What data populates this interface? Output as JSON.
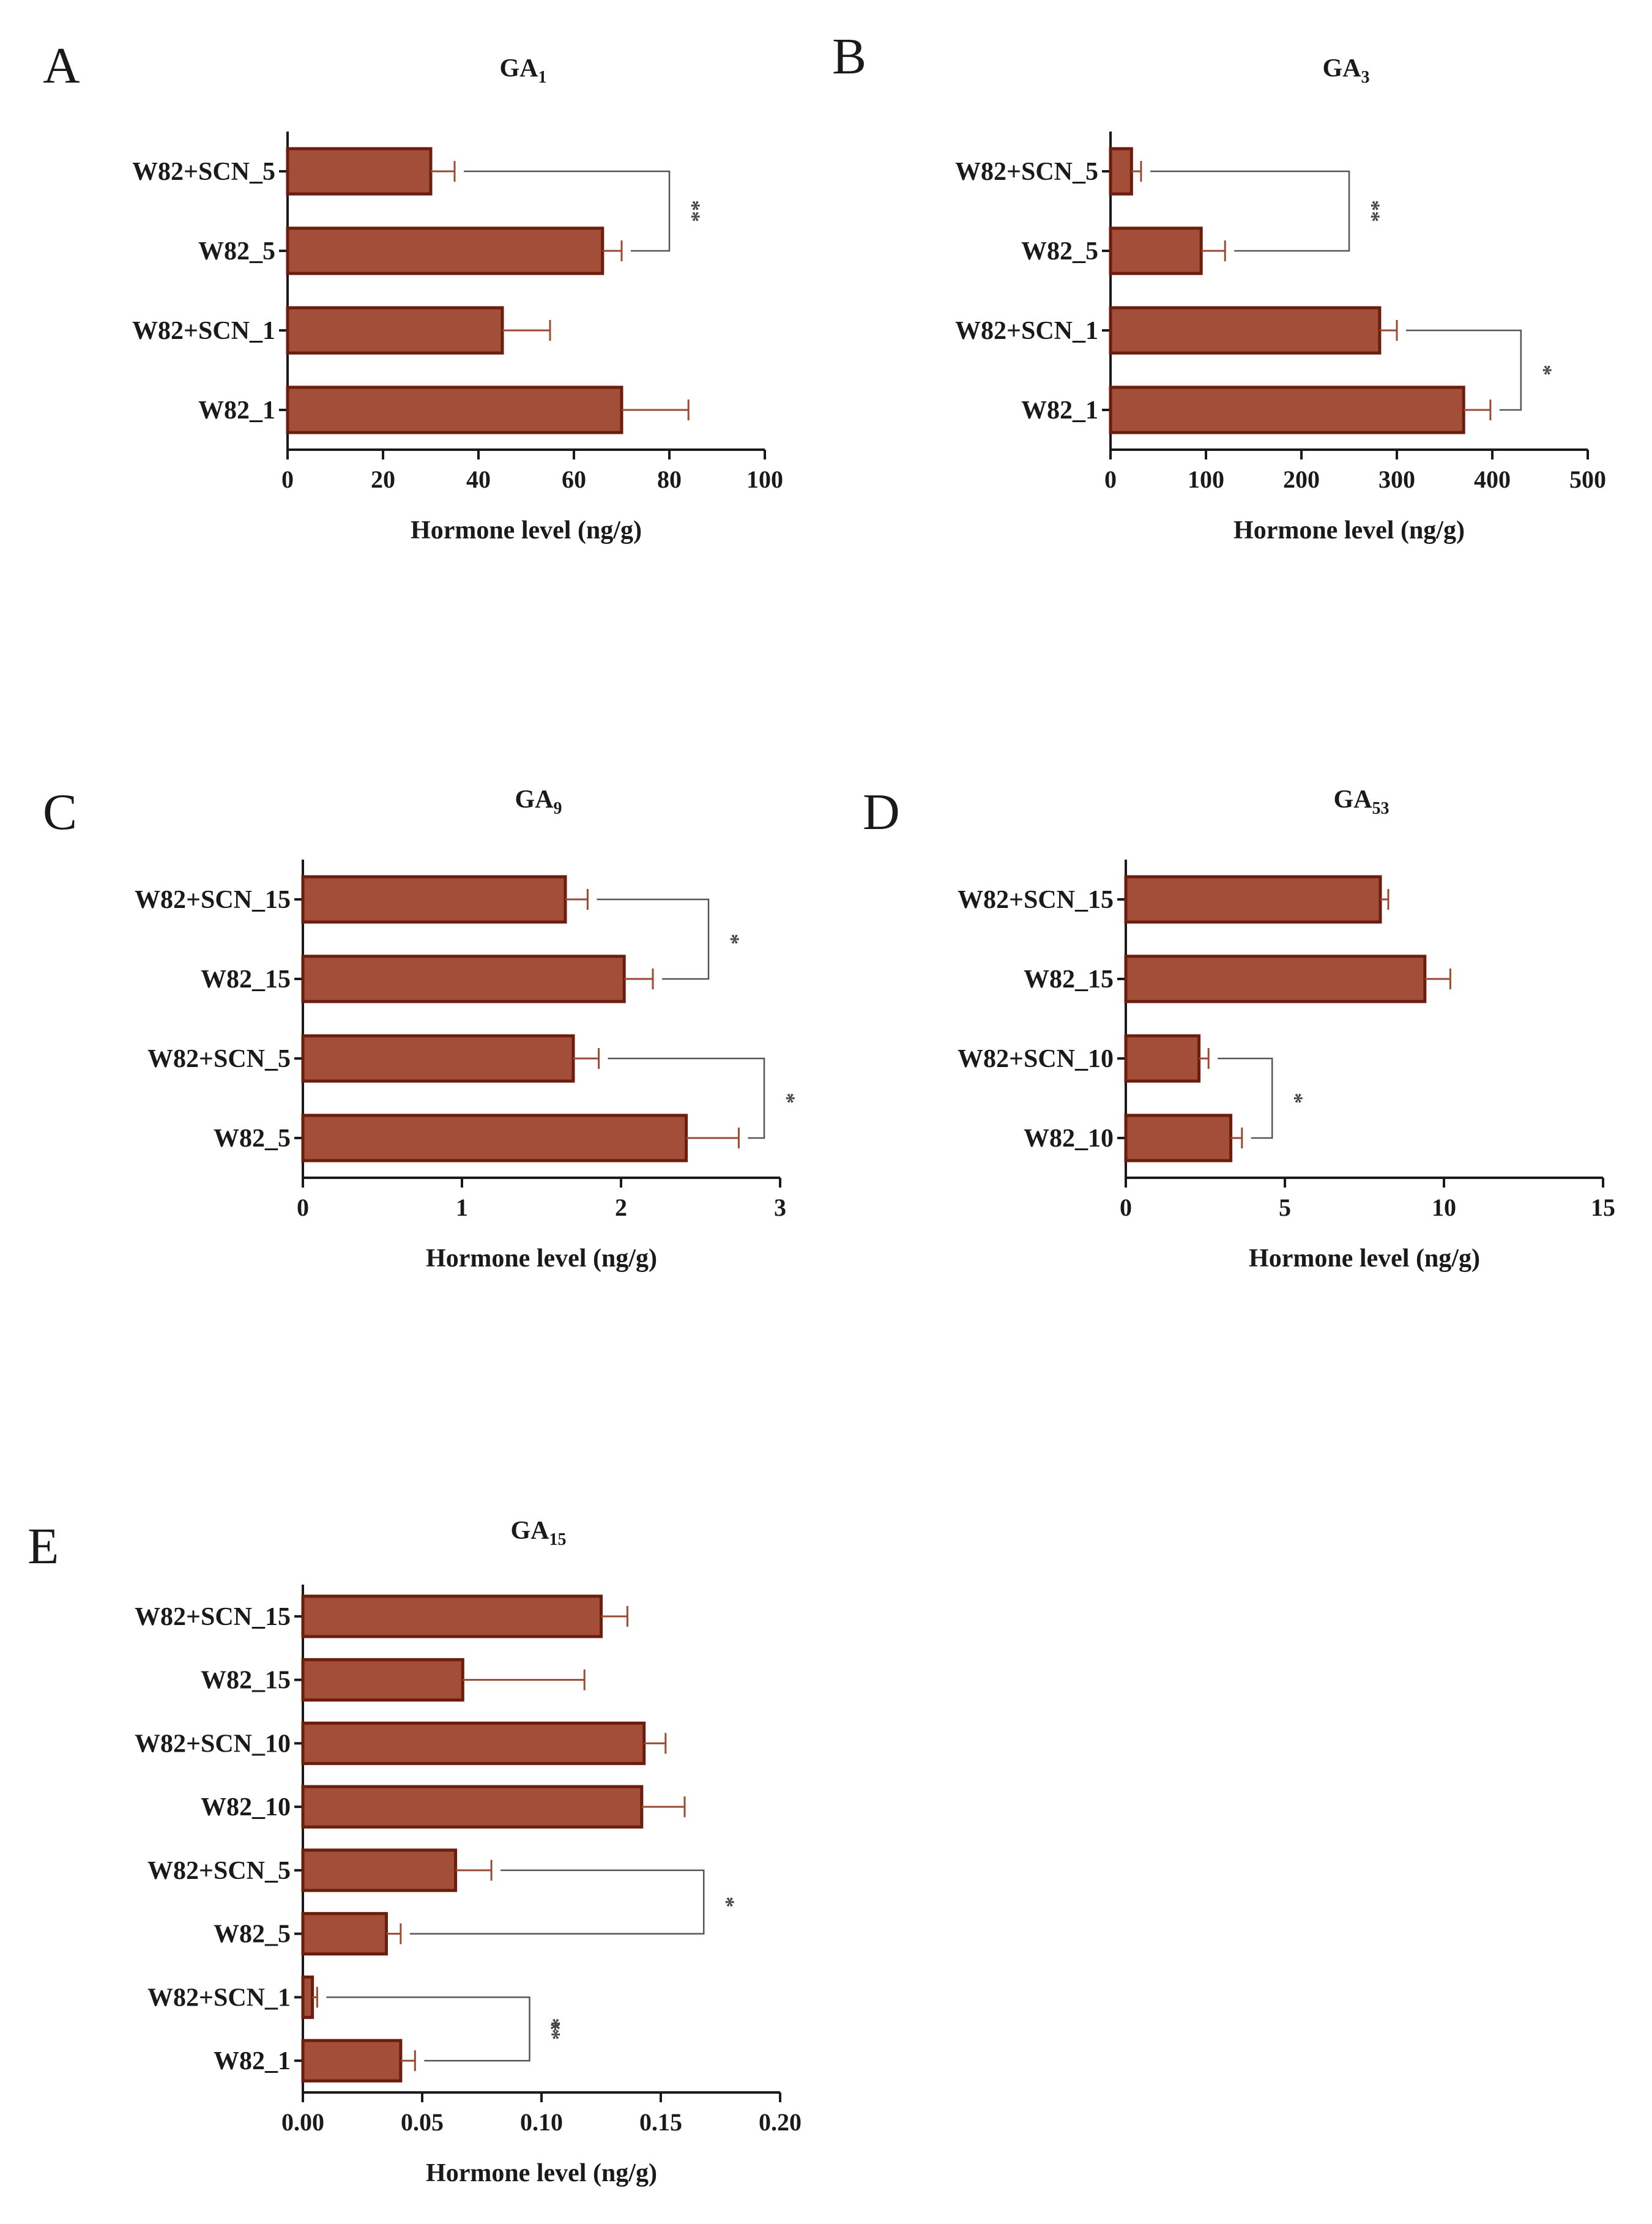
{
  "colors": {
    "bar_fill": "#a24e39",
    "bar_edge": "#6b1e0e",
    "error": "#9a4a35",
    "axis": "#1a1a1a",
    "bracket": "#555555"
  },
  "chart_data": [
    {
      "panel": "A",
      "type": "bar",
      "orientation": "horizontal",
      "title_main": "GA",
      "title_sub": "1",
      "categories": [
        "W82+SCN_5",
        "W82_5",
        "W82+SCN_1",
        "W82_1"
      ],
      "values": [
        30,
        66,
        45,
        70
      ],
      "errors": [
        5,
        4,
        10,
        14
      ],
      "xlim": [
        0,
        100
      ],
      "xticks": [
        0,
        20,
        40,
        60,
        80,
        100
      ],
      "xtick_labels": [
        "0",
        "20",
        "40",
        "60",
        "80",
        "100"
      ],
      "xlabel": "Hormone level (ng/g)",
      "significance": [
        {
          "from": 0,
          "to": 1,
          "label": "**",
          "bracket_x": 80
        }
      ]
    },
    {
      "panel": "B",
      "type": "bar",
      "orientation": "horizontal",
      "title_main": "GA",
      "title_sub": "3",
      "categories": [
        "W82+SCN_5",
        "W82_5",
        "W82+SCN_1",
        "W82_1"
      ],
      "values": [
        22,
        95,
        282,
        370
      ],
      "errors": [
        10,
        25,
        18,
        28
      ],
      "xlim": [
        0,
        500
      ],
      "xticks": [
        0,
        100,
        200,
        300,
        400,
        500
      ],
      "xtick_labels": [
        "0",
        "100",
        "200",
        "300",
        "400",
        "500"
      ],
      "xlabel": "Hormone level (ng/g)",
      "significance": [
        {
          "from": 0,
          "to": 1,
          "label": "**",
          "bracket_x": 250
        },
        {
          "from": 2,
          "to": 3,
          "label": "*",
          "bracket_x": 430
        }
      ]
    },
    {
      "panel": "C",
      "type": "bar",
      "orientation": "horizontal",
      "title_main": "GA",
      "title_sub": "9",
      "categories": [
        "W82+SCN_15",
        "W82_15",
        "W82+SCN_5",
        "W82_5"
      ],
      "values": [
        1.65,
        2.02,
        1.7,
        2.41
      ],
      "errors": [
        0.14,
        0.18,
        0.16,
        0.33
      ],
      "xlim": [
        0,
        3
      ],
      "xticks": [
        0,
        1,
        2,
        3
      ],
      "xtick_labels": [
        "0",
        "1",
        "2",
        "3"
      ],
      "xlabel": "Hormone level (ng/g)",
      "significance": [
        {
          "from": 0,
          "to": 1,
          "label": "*",
          "bracket_x": 2.55
        },
        {
          "from": 2,
          "to": 3,
          "label": "*",
          "bracket_x": 2.9
        }
      ]
    },
    {
      "panel": "D",
      "type": "bar",
      "orientation": "horizontal",
      "title_main": "GA",
      "title_sub": "53",
      "categories": [
        "W82+SCN_15",
        "W82_15",
        "W82+SCN_10",
        "W82_10"
      ],
      "values": [
        8.0,
        9.4,
        2.3,
        3.3
      ],
      "errors": [
        0.25,
        0.8,
        0.3,
        0.35
      ],
      "xlim": [
        0,
        15
      ],
      "xticks": [
        0,
        5,
        10,
        15
      ],
      "xtick_labels": [
        "0",
        "5",
        "10",
        "15"
      ],
      "xlabel": "Hormone level (ng/g)",
      "significance": [
        {
          "from": 2,
          "to": 3,
          "label": "*",
          "bracket_x": 4.6
        }
      ]
    },
    {
      "panel": "E",
      "type": "bar",
      "orientation": "horizontal",
      "title_main": "GA",
      "title_sub": "15",
      "categories": [
        "W82+SCN_15",
        "W82_15",
        "W82+SCN_10",
        "W82_10",
        "W82+SCN_5",
        "W82_5",
        "W82+SCN_1",
        "W82_1"
      ],
      "values": [
        0.125,
        0.067,
        0.143,
        0.142,
        0.064,
        0.035,
        0.004,
        0.041
      ],
      "errors": [
        0.011,
        0.051,
        0.009,
        0.018,
        0.015,
        0.006,
        0.002,
        0.006
      ],
      "xlim": [
        0,
        0.2
      ],
      "xticks": [
        0,
        0.05,
        0.1,
        0.15,
        0.2
      ],
      "xtick_labels": [
        "0.00",
        "0.05",
        "0.10",
        "0.15",
        "0.20"
      ],
      "xlabel": "Hormone level (ng/g)",
      "significance": [
        {
          "from": 4,
          "to": 5,
          "label": "*",
          "bracket_x": 0.168
        },
        {
          "from": 6,
          "to": 7,
          "label": "**",
          "label2": "*",
          "bracket_x": 0.095
        }
      ]
    }
  ]
}
